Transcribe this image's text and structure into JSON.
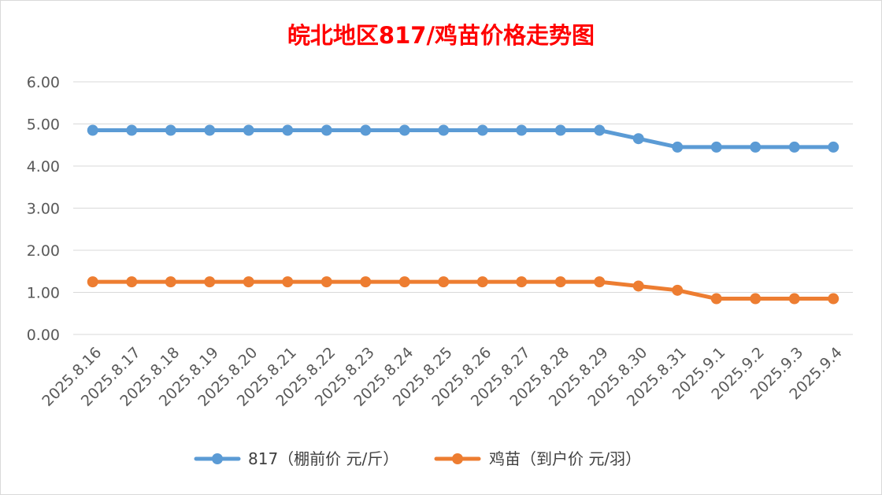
{
  "chart_data": {
    "type": "line",
    "title": "皖北地区817/鸡苗价格走势图",
    "title_color": "#ff0000",
    "xlabel": "",
    "ylabel": "",
    "ylim": [
      0,
      6
    ],
    "y_ticks": [
      "0.00",
      "1.00",
      "2.00",
      "3.00",
      "4.00",
      "5.00",
      "6.00"
    ],
    "grid": true,
    "legend_position": "bottom",
    "categories": [
      "2025.8.16",
      "2025.8.17",
      "2025.8.18",
      "2025.8.19",
      "2025.8.20",
      "2025.8.21",
      "2025.8.22",
      "2025.8.23",
      "2025.8.24",
      "2025.8.25",
      "2025.8.26",
      "2025.8.27",
      "2025.8.28",
      "2025.8.29",
      "2025.8.30",
      "2025.8.31",
      "2025.9.1",
      "2025.9.2",
      "2025.9.3",
      "2025.9.4"
    ],
    "series": [
      {
        "name": "817（棚前价 元/斤）",
        "color": "#5b9bd5",
        "values": [
          4.85,
          4.85,
          4.85,
          4.85,
          4.85,
          4.85,
          4.85,
          4.85,
          4.85,
          4.85,
          4.85,
          4.85,
          4.85,
          4.85,
          4.65,
          4.45,
          4.45,
          4.45,
          4.45,
          4.45
        ]
      },
      {
        "name": "鸡苗（到户价 元/羽）",
        "color": "#ed7d31",
        "values": [
          1.25,
          1.25,
          1.25,
          1.25,
          1.25,
          1.25,
          1.25,
          1.25,
          1.25,
          1.25,
          1.25,
          1.25,
          1.25,
          1.25,
          1.15,
          1.05,
          0.85,
          0.85,
          0.85,
          0.85
        ]
      }
    ]
  }
}
